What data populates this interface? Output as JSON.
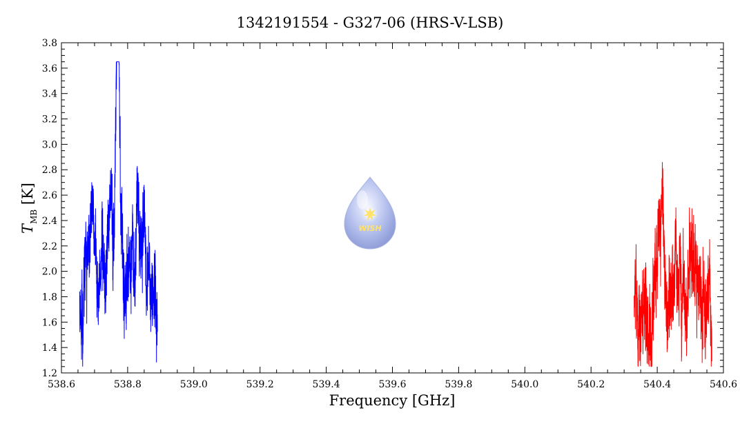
{
  "chart_data": {
    "type": "line",
    "title": "1342191554 - G327-06 (HRS-V-LSB)",
    "xlabel": "Frequency [GHz]",
    "ylabel_main": "T",
    "ylabel_sub": "MB",
    "ylabel_unit": " [K]",
    "xlim": [
      538.6,
      540.6
    ],
    "ylim": [
      1.2,
      3.8
    ],
    "x_ticks": [
      "538.6",
      "538.8",
      "539.0",
      "539.2",
      "539.4",
      "539.6",
      "539.8",
      "540.0",
      "540.2",
      "540.4",
      "540.6"
    ],
    "y_ticks": [
      "1.2",
      "1.4",
      "1.6",
      "1.8",
      "2.0",
      "2.2",
      "2.4",
      "2.6",
      "2.8",
      "3.0",
      "3.2",
      "3.4",
      "3.6",
      "3.8"
    ],
    "grid": false,
    "series": [
      {
        "color": "#0000ff",
        "x_range": [
          538.655,
          538.89
        ],
        "baseline": 1.9,
        "noise": 0.18,
        "peak": {
          "center": 538.77,
          "height": 1.55,
          "width": 0.006
        }
      },
      {
        "color": "#ff0000",
        "x_range": [
          540.33,
          540.565
        ],
        "baseline": 1.88,
        "noise": 0.2,
        "peak": null
      }
    ],
    "logo_text": "WISH"
  }
}
